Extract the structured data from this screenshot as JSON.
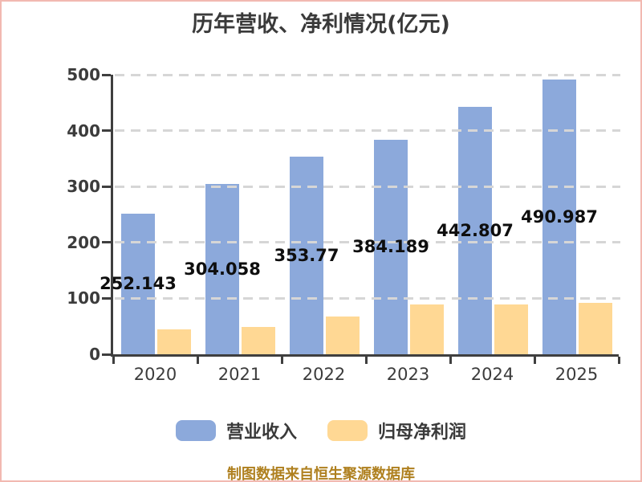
{
  "frame": {
    "border_color": "#F2B9B1",
    "background": "#FFFFFF"
  },
  "chart_data": {
    "type": "bar",
    "title": "历年营收、净利情况(亿元)",
    "categories": [
      "2020",
      "2021",
      "2022",
      "2023",
      "2024",
      "2025"
    ],
    "series": [
      {
        "name": "营业收入",
        "color": "#8CA9DB",
        "values": [
          252.143,
          304.058,
          353.77,
          384.189,
          442.807,
          490.987
        ],
        "data_labels": [
          "252.143",
          "304.058",
          "353.77",
          "384.189",
          "442.807",
          "490.987"
        ]
      },
      {
        "name": "归母净利润",
        "color": "#FFD894",
        "values": [
          44.5,
          49,
          68,
          89,
          89,
          92
        ],
        "data_labels": null
      }
    ],
    "ylim": [
      0,
      500
    ],
    "yticks": [
      0,
      100,
      200,
      300,
      400,
      500
    ],
    "grid": "horizontal-dashed",
    "legend_position": "bottom",
    "footer": "制图数据来自恒生聚源数据库",
    "colors": {
      "axis": "#3F3F3F",
      "gridline": "#D6D6D6",
      "tick_label": "#3C3C3C",
      "value_label": "#0E0E0E",
      "footer_text": "#AF801F"
    }
  }
}
